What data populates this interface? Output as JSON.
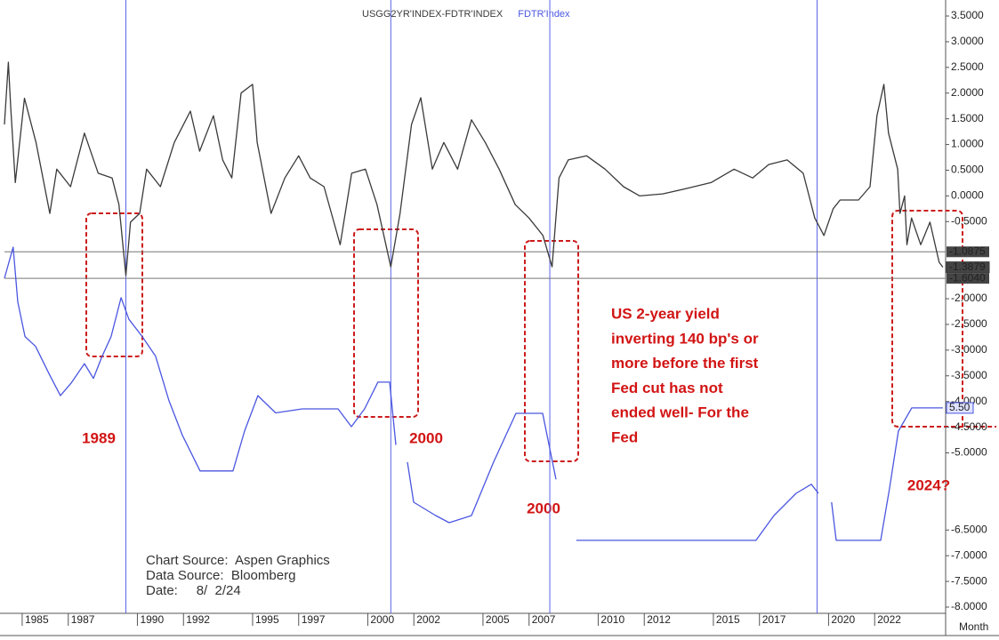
{
  "chart_data": {
    "type": "line",
    "series": [
      {
        "name": "USGG2YR'INDEX-FDTR'INDEX",
        "color": "#3a3a3a",
        "x": [
          1984.23,
          1984.4,
          1984.5,
          1984.7,
          1985.1,
          1985.6,
          1986.2,
          1986.5,
          1987.1,
          1987.7,
          1988.3,
          1988.9,
          1989.2,
          1989.5,
          1989.7,
          1990.1,
          1990.4,
          1991.0,
          1991.6,
          1992.3,
          1992.7,
          1993.3,
          1993.7,
          1994.1,
          1994.5,
          1995.0,
          1995.2,
          1995.8,
          1996.4,
          1997.0,
          1997.5,
          1998.1,
          1998.8,
          1999.3,
          1999.9,
          2000.4,
          2001.0,
          2001.4,
          2001.9,
          2002.3,
          2002.8,
          2003.3,
          2003.9,
          2004.5,
          2005.1,
          2005.7,
          2006.4,
          2007.0,
          2007.6,
          2008.0,
          2008.3,
          2008.7,
          2009.5,
          2010.3,
          2011.1,
          2011.8,
          2012.8,
          2013.8,
          2014.9,
          2015.9,
          2016.7,
          2017.4,
          2018.2,
          2018.9,
          2019.4,
          2019.8,
          2020.2,
          2020.5,
          2021.3,
          2021.8,
          2022.1,
          2022.4,
          2022.6,
          2023.0,
          2023.1,
          2023.3,
          2023.4,
          2023.6,
          2024.0,
          2024.4,
          2024.8,
          2024.96
        ],
        "values": [
          1.39,
          2.6,
          1.74,
          0.26,
          1.9,
          1.04,
          -0.34,
          0.52,
          0.18,
          1.22,
          0.44,
          0.35,
          -0.17,
          -1.55,
          -0.51,
          -0.34,
          0.52,
          0.18,
          1.04,
          1.65,
          0.87,
          1.56,
          0.7,
          0.35,
          2.0,
          2.17,
          1.04,
          -0.34,
          0.35,
          0.78,
          0.35,
          0.18,
          -0.95,
          0.44,
          0.52,
          -0.17,
          -1.38,
          -0.34,
          1.39,
          1.91,
          0.52,
          1.04,
          0.52,
          1.48,
          1.04,
          0.52,
          -0.17,
          -0.43,
          -0.77,
          -1.38,
          0.35,
          0.7,
          0.78,
          0.52,
          0.18,
          0.0,
          0.04,
          0.14,
          0.26,
          0.52,
          0.35,
          0.61,
          0.7,
          0.44,
          -0.43,
          -0.77,
          -0.25,
          -0.08,
          -0.08,
          0.18,
          1.56,
          2.17,
          1.22,
          0.52,
          -0.34,
          0.0,
          -0.95,
          -0.43,
          -0.95,
          -0.51,
          -1.29,
          -1.3879
        ],
        "last_label": "-1.3879"
      },
      {
        "name": "FDTR'Index",
        "color": "#4a56e0",
        "axis": "y2",
        "x": [
          1984.23,
          1984.61,
          1984.81,
          1985.12,
          1985.58,
          1986.16,
          1986.66,
          1987.12,
          1987.7,
          1988.09,
          1988.47,
          1988.86,
          1989.29,
          1989.63,
          1990.21,
          1990.79,
          1991.37,
          1991.95,
          1992.72,
          1994.15,
          1994.65,
          1995.23,
          1996.0,
          1997.16,
          1998.71,
          1999.29,
          1999.86,
          2000.44,
          2000.95,
          2001.22,
          2001.5,
          2001.72,
          2001.99,
          2002.95,
          2003.53,
          2004.5,
          2005.46,
          2006.43,
          2007.59,
          2008.17,
          2008.5,
          2009.05,
          2016.85,
          2017.63,
          2018.59,
          2019.25,
          2019.56,
          2019.8,
          2020.13,
          2020.33,
          2022.26,
          2022.64,
          2023.03,
          2023.61,
          2024.96
        ],
        "values": [
          10.77,
          12.03,
          9.8,
          8.4,
          8.0,
          6.9,
          6.0,
          6.5,
          7.3,
          6.7,
          7.6,
          8.4,
          9.98,
          9.1,
          8.4,
          7.6,
          5.8,
          4.4,
          2.94,
          2.94,
          4.56,
          6.0,
          5.3,
          5.46,
          5.46,
          4.74,
          5.46,
          6.55,
          6.55,
          4.0,
          null,
          3.3,
          1.67,
          1.13,
          0.84,
          1.13,
          3.3,
          5.28,
          5.28,
          2.6,
          null,
          0.12,
          0.12,
          1.13,
          2.03,
          2.4,
          2.03,
          null,
          1.67,
          0.12,
          0.12,
          2.2,
          4.56,
          5.5,
          5.5
        ],
        "last_label": "5.50"
      }
    ],
    "xlim": [
      1984.23,
      2025.08
    ],
    "xticks": [
      1985,
      1987,
      1990,
      1992,
      1995,
      1997,
      2000,
      2002,
      2005,
      2007,
      2010,
      2012,
      2015,
      2017,
      2020,
      2022
    ],
    "x_label": "Month",
    "ylim": [
      -8.0,
      3.5
    ],
    "yticks": [
      {
        "value": 3.5,
        "label": "3.5000"
      },
      {
        "value": 3.0,
        "label": "3.0000"
      },
      {
        "value": 2.5,
        "label": "2.5000"
      },
      {
        "value": 2.0,
        "label": "2.0000"
      },
      {
        "value": 1.5,
        "label": "1.5000"
      },
      {
        "value": 1.0,
        "label": "1.0000"
      },
      {
        "value": 0.5,
        "label": "0.5000"
      },
      {
        "value": 0.0,
        "label": "0.0000"
      },
      {
        "value": -0.5,
        "label": "-0.5000"
      },
      {
        "value": -2.0,
        "label": "-2.0000"
      },
      {
        "value": -2.5,
        "label": "-2.5000"
      },
      {
        "value": -3.0,
        "label": "-3.0000"
      },
      {
        "value": -3.5,
        "label": "-3.5000"
      },
      {
        "value": -4.0,
        "label": "-4.0000"
      },
      {
        "value": -4.5,
        "label": "-4.5000"
      },
      {
        "value": -5.0,
        "label": "-5.0000"
      },
      {
        "value": -6.5,
        "label": "-6.5000"
      },
      {
        "value": -7.0,
        "label": "-7.0000"
      },
      {
        "value": -7.5,
        "label": "-7.5000"
      },
      {
        "value": -8.0,
        "label": "-8.0000"
      }
    ],
    "y2lim": [
      -2.59,
      21.42
    ],
    "ref_lines": [
      {
        "value": -1.0875,
        "label": "-1.0875"
      },
      {
        "value": -1.604,
        "label": "-1.6040"
      }
    ],
    "vlines": [
      1989.5,
      2001.0,
      2007.9,
      2019.5
    ],
    "annotations": {
      "year_1989": "1989",
      "year_2000a": "2000",
      "year_2000b": "2000",
      "year_2024": "2024?",
      "note": [
        "US 2-year yield",
        "inverting 140 bp's or",
        "more before the first",
        "Fed cut has not",
        "ended well- For the",
        "Fed"
      ]
    },
    "source": [
      "Chart Source:  Aspen Graphics",
      "Data Source:  Bloomberg",
      "Date:     8/  2/24"
    ]
  }
}
